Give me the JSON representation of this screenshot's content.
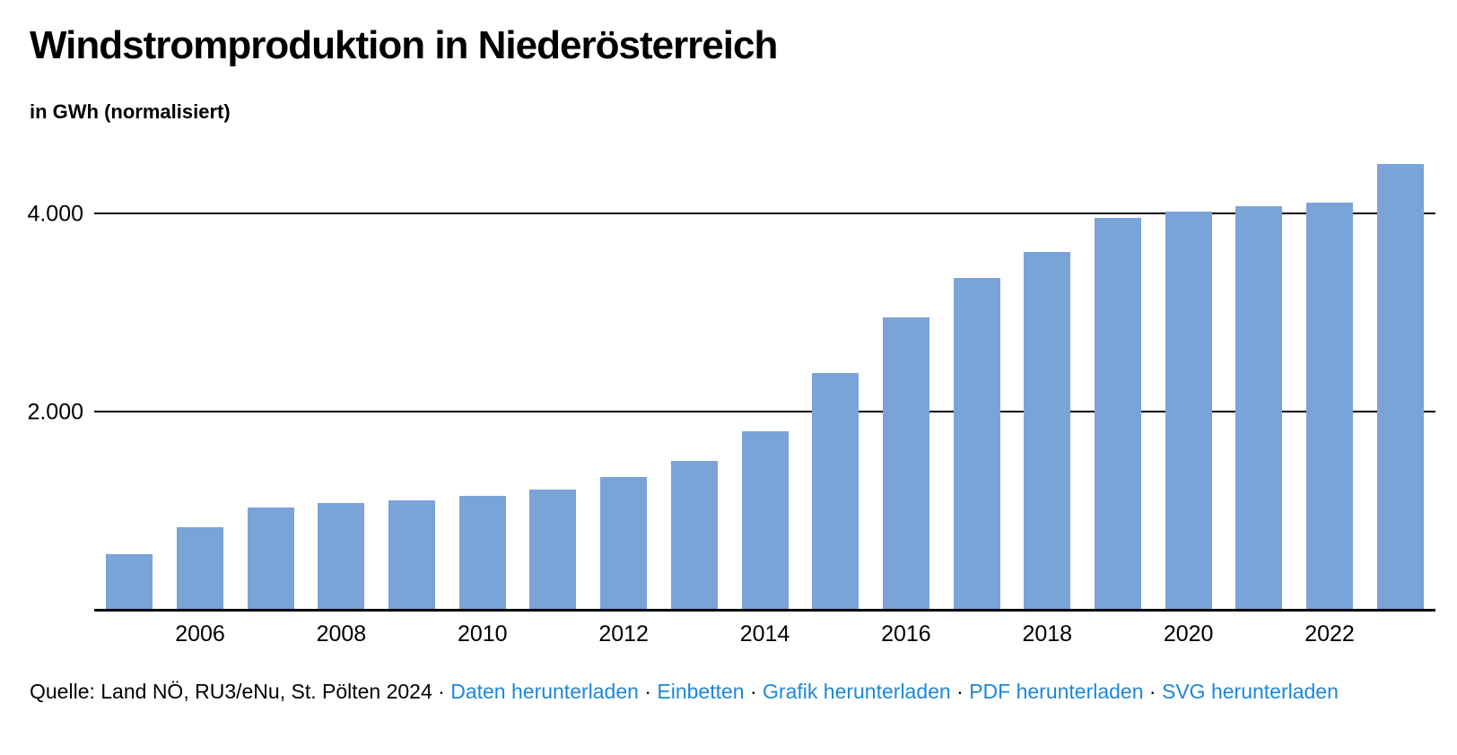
{
  "header": {},
  "chart_data": {
    "type": "bar",
    "title": "Windstromproduktion in Niederösterreich",
    "subtitle": "in GWh (normalisiert)",
    "unit": "GWh",
    "categories": [
      2005,
      2006,
      2007,
      2008,
      2009,
      2010,
      2011,
      2012,
      2013,
      2014,
      2015,
      2016,
      2017,
      2018,
      2019,
      2020,
      2021,
      2022,
      2023
    ],
    "values": [
      550,
      830,
      1030,
      1075,
      1100,
      1140,
      1210,
      1335,
      1500,
      1795,
      2390,
      2950,
      3350,
      3610,
      3960,
      4020,
      4080,
      4115,
      4500
    ],
    "ylim": [
      0,
      4620
    ],
    "y_ticks": [
      {
        "value": 2000,
        "label": "2.000"
      },
      {
        "value": 4000,
        "label": "4.000"
      }
    ],
    "x_tick_labels": [
      "2006",
      "2008",
      "2010",
      "2012",
      "2014",
      "2016",
      "2018",
      "2020",
      "2022"
    ],
    "x_tick_every": 2,
    "grid": "horizontal",
    "legend": "none",
    "bar_color": "#7aa3d8",
    "axis_color": "#000000"
  },
  "footer": {
    "source_label": "Quelle: Land NÖ, RU3/eNu, St. Pölten 2024",
    "separator": "·",
    "links": [
      "Daten herunterladen",
      "Einbetten",
      "Grafik herunterladen",
      "PDF herunterladen",
      "SVG herunterladen"
    ],
    "link_color": "#1e87d8"
  }
}
